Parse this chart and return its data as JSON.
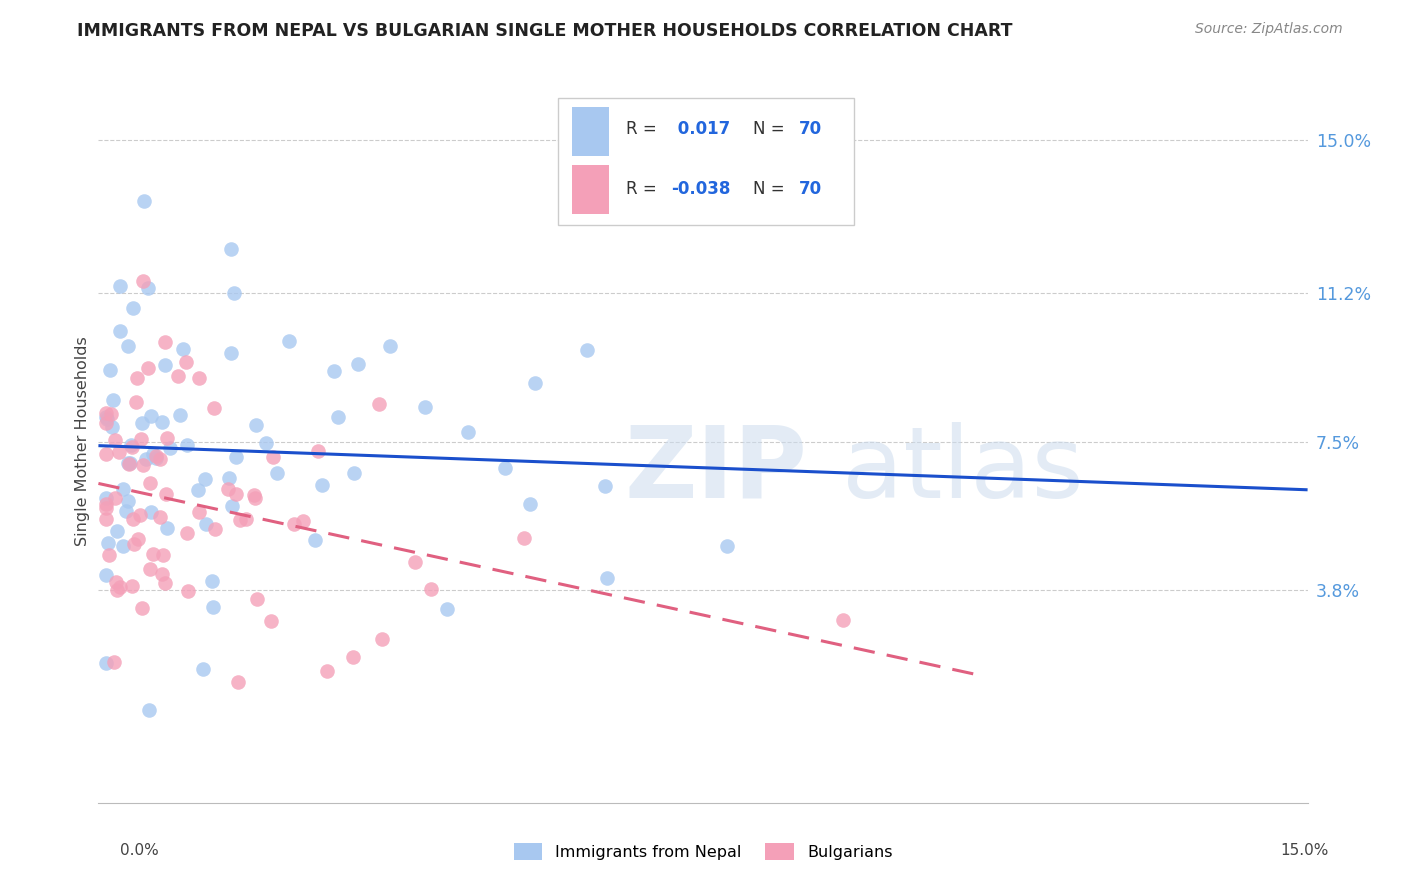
{
  "title": "IMMIGRANTS FROM NEPAL VS BULGARIAN SINGLE MOTHER HOUSEHOLDS CORRELATION CHART",
  "source": "Source: ZipAtlas.com",
  "ylabel": "Single Mother Households",
  "ytick_labels": [
    "15.0%",
    "11.2%",
    "7.5%",
    "3.8%"
  ],
  "ytick_values": [
    0.15,
    0.112,
    0.075,
    0.038
  ],
  "xlim": [
    0.0,
    0.15
  ],
  "ylim": [
    -0.015,
    0.165
  ],
  "r1": 0.017,
  "r2": -0.038,
  "color_nepal": "#a8c8f0",
  "color_bulgarian": "#f4a0b8",
  "color_nepal_line": "#1a4fcc",
  "color_bulgarian_line": "#e06080",
  "background": "#ffffff",
  "grid_color": "#cccccc"
}
